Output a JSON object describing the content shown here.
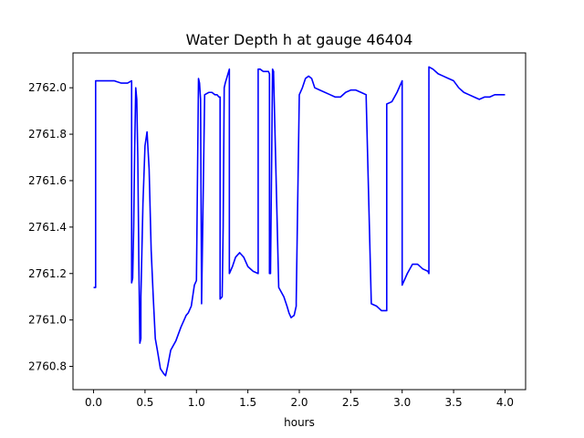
{
  "chart_data": {
    "type": "line",
    "title": "Water Depth h at gauge 46404",
    "xlabel": "hours",
    "ylabel": "",
    "xlim": [
      -0.2,
      4.2
    ],
    "ylim": [
      2760.7,
      2762.15
    ],
    "xticks": [
      0.0,
      0.5,
      1.0,
      1.5,
      2.0,
      2.5,
      3.0,
      3.5,
      4.0
    ],
    "xtick_labels": [
      "0.0",
      "0.5",
      "1.0",
      "1.5",
      "2.0",
      "2.5",
      "3.0",
      "3.5",
      "4.0"
    ],
    "yticks": [
      2760.8,
      2761.0,
      2761.2,
      2761.4,
      2761.6,
      2761.8,
      2762.0
    ],
    "ytick_labels": [
      "2760.8",
      "2761.0",
      "2761.2",
      "2761.4",
      "2761.6",
      "2761.8",
      "2762.0"
    ],
    "grid": false,
    "color": "#0000ff",
    "series": [
      {
        "x": [
          0.0,
          0.02,
          0.02,
          0.1,
          0.2,
          0.27,
          0.33,
          0.37,
          0.37,
          0.38,
          0.39,
          0.4,
          0.41,
          0.42,
          0.43,
          0.44,
          0.45,
          0.46,
          0.46,
          0.48,
          0.5,
          0.52,
          0.54,
          0.56,
          0.58,
          0.6,
          0.62,
          0.65,
          0.68,
          0.7,
          0.72,
          0.75,
          0.8,
          0.85,
          0.88,
          0.9,
          0.92,
          0.95,
          0.97,
          0.98,
          1.0,
          1.02,
          1.03,
          1.04,
          1.05,
          1.05,
          1.08,
          1.12,
          1.15,
          1.18,
          1.2,
          1.22,
          1.23,
          1.23,
          1.25,
          1.26,
          1.27,
          1.28,
          1.3,
          1.32,
          1.32,
          1.35,
          1.38,
          1.42,
          1.46,
          1.5,
          1.55,
          1.6,
          1.6,
          1.62,
          1.65,
          1.68,
          1.7,
          1.71,
          1.71,
          1.72,
          1.74,
          1.75,
          1.75,
          1.8,
          1.85,
          1.88,
          1.9,
          1.92,
          1.95,
          1.97,
          1.97,
          2.0,
          2.03,
          2.06,
          2.09,
          2.12,
          2.15,
          2.2,
          2.3,
          2.35,
          2.4,
          2.45,
          2.5,
          2.55,
          2.6,
          2.65,
          2.65,
          2.7,
          2.75,
          2.8,
          2.83,
          2.85,
          2.85,
          2.9,
          2.95,
          2.98,
          3.0,
          3.0,
          3.05,
          3.1,
          3.15,
          3.2,
          3.25,
          3.26,
          3.26,
          3.3,
          3.35,
          3.4,
          3.45,
          3.5,
          3.55,
          3.6,
          3.65,
          3.7,
          3.75,
          3.8,
          3.85,
          3.9,
          3.95,
          4.0
        ],
        "y": [
          2761.14,
          2761.14,
          2762.03,
          2762.03,
          2762.03,
          2762.02,
          2762.02,
          2762.03,
          2761.16,
          2761.18,
          2761.4,
          2761.75,
          2762.0,
          2761.95,
          2761.7,
          2761.25,
          2760.9,
          2760.92,
          2761.1,
          2761.5,
          2761.75,
          2761.81,
          2761.65,
          2761.3,
          2761.1,
          2760.92,
          2760.87,
          2760.79,
          2760.77,
          2760.76,
          2760.8,
          2760.87,
          2760.91,
          2760.97,
          2761.0,
          2761.02,
          2761.03,
          2761.06,
          2761.12,
          2761.15,
          2761.17,
          2762.04,
          2762.02,
          2761.95,
          2761.08,
          2761.07,
          2761.97,
          2761.98,
          2761.98,
          2761.97,
          2761.97,
          2761.96,
          2761.96,
          2761.09,
          2761.1,
          2761.4,
          2762.0,
          2762.02,
          2762.05,
          2762.08,
          2761.2,
          2761.23,
          2761.27,
          2761.29,
          2761.27,
          2761.23,
          2761.21,
          2761.2,
          2762.08,
          2762.08,
          2762.07,
          2762.07,
          2762.07,
          2762.06,
          2761.2,
          2761.2,
          2762.08,
          2762.07,
          2762.06,
          2761.14,
          2761.1,
          2761.06,
          2761.03,
          2761.01,
          2761.02,
          2761.06,
          2761.08,
          2761.97,
          2762.0,
          2762.04,
          2762.05,
          2762.04,
          2762.0,
          2761.99,
          2761.97,
          2761.96,
          2761.96,
          2761.98,
          2761.99,
          2761.99,
          2761.98,
          2761.97,
          2761.96,
          2761.07,
          2761.06,
          2761.04,
          2761.04,
          2761.04,
          2761.93,
          2761.94,
          2761.98,
          2762.01,
          2762.03,
          2761.15,
          2761.2,
          2761.24,
          2761.24,
          2761.22,
          2761.21,
          2761.2,
          2762.09,
          2762.08,
          2762.06,
          2762.05,
          2762.04,
          2762.03,
          2762.0,
          2761.98,
          2761.97,
          2761.96,
          2761.95,
          2761.96,
          2761.96,
          2761.97,
          2761.97,
          2761.97
        ]
      }
    ]
  }
}
